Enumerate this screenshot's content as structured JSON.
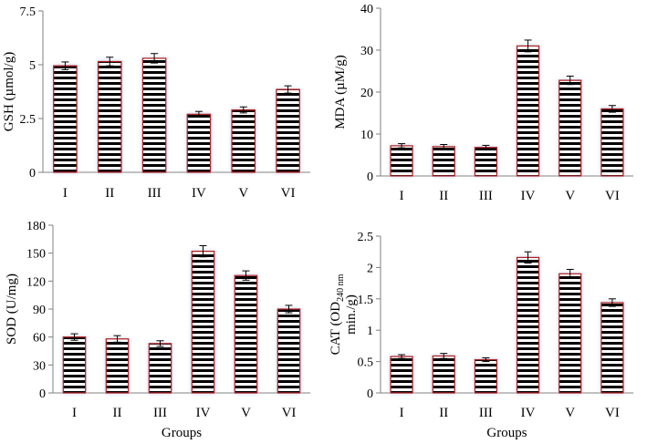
{
  "chart_data": [
    {
      "id": "gsh",
      "type": "bar",
      "categories": [
        "I",
        "II",
        "III",
        "IV",
        "V",
        "VI"
      ],
      "values": [
        4.95,
        5.15,
        5.3,
        2.7,
        2.9,
        3.85
      ],
      "errors": [
        0.18,
        0.2,
        0.22,
        0.13,
        0.14,
        0.17
      ],
      "ylabel": "GSH  (µmol/g)",
      "xlabel": "",
      "ylim": [
        0,
        7.5
      ],
      "yticks": [
        0,
        2.5,
        5,
        7.5
      ],
      "ytick_labels": [
        "0",
        "2.5",
        "5",
        "7.5"
      ],
      "grid": false
    },
    {
      "id": "mda",
      "type": "bar",
      "categories": [
        "I",
        "II",
        "III",
        "IV",
        "V",
        "VI"
      ],
      "values": [
        7.2,
        7.0,
        6.8,
        31.0,
        22.8,
        16.0
      ],
      "errors": [
        0.5,
        0.5,
        0.5,
        1.4,
        1.0,
        0.8
      ],
      "ylabel": "MDA   (µM/g)",
      "xlabel": "",
      "ylim": [
        0,
        40
      ],
      "yticks": [
        0,
        10,
        20,
        30,
        40
      ],
      "ytick_labels": [
        "0",
        "10",
        "20",
        "30",
        "40"
      ],
      "grid": false
    },
    {
      "id": "sod",
      "type": "bar",
      "categories": [
        "I",
        "II",
        "III",
        "IV",
        "V",
        "VI"
      ],
      "values": [
        60,
        58,
        53,
        152,
        126,
        90
      ],
      "errors": [
        3.5,
        3.5,
        3.0,
        6.0,
        5.0,
        4.0
      ],
      "ylabel": "SOD (U/mg)",
      "xlabel": "Groups",
      "ylim": [
        0,
        180
      ],
      "yticks": [
        0,
        30,
        60,
        90,
        120,
        150,
        180
      ],
      "ytick_labels": [
        "0",
        "30",
        "60",
        "90",
        "120",
        "150",
        "180"
      ],
      "grid": false
    },
    {
      "id": "cat",
      "type": "bar",
      "categories": [
        "I",
        "II",
        "III",
        "IV",
        "V",
        "VI"
      ],
      "values": [
        0.58,
        0.59,
        0.53,
        2.16,
        1.9,
        1.44
      ],
      "errors": [
        0.03,
        0.04,
        0.03,
        0.09,
        0.07,
        0.06
      ],
      "ylabel_main": "CAT (OD",
      "ylabel_sub": "240 nm",
      "ylabel_line2": "min./g)",
      "xlabel": "Groups",
      "ylim": [
        0,
        2.5
      ],
      "yticks": [
        0,
        0.5,
        1,
        1.5,
        2,
        2.5
      ],
      "ytick_labels": [
        "0",
        "0.5",
        "1",
        "1.5",
        "2",
        "2.5"
      ],
      "grid": false
    }
  ],
  "style": {
    "bar_outline": "#b22222",
    "stripe_dark": "#000000",
    "stripe_light": "#ffffff",
    "glow": "#c8d0ee",
    "axis": "#808080"
  }
}
